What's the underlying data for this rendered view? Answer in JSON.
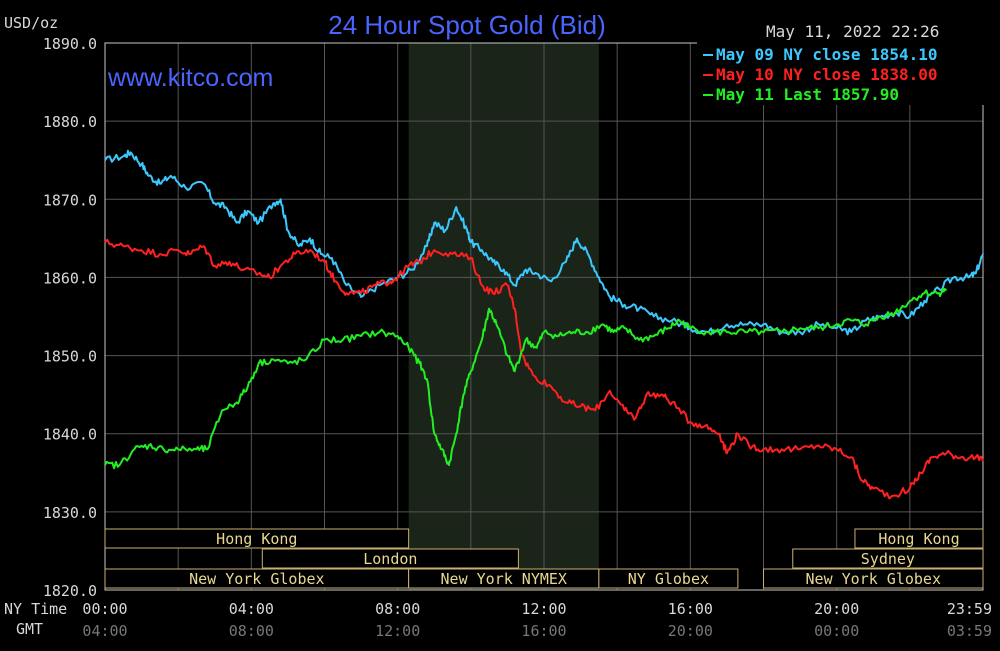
{
  "header": {
    "unit": "USD/oz",
    "title": "24 Hour Spot Gold (Bid)",
    "timestamp": "May 11, 2022 22:26",
    "watermark": "www.kitco.com",
    "title_color": "#4a64ff",
    "text_color": "#d8d8d8"
  },
  "axis_labels": {
    "ny_time": "NY Time",
    "gmt": "GMT"
  },
  "chart_data": {
    "type": "line",
    "title": "24 Hour Spot Gold (Bid)",
    "ylabel": "USD/oz",
    "xlabel": "",
    "ylim": [
      1820,
      1890
    ],
    "xlim": [
      0,
      24
    ],
    "grid": true,
    "legend_position": "top-right",
    "y_ticks": [
      1890,
      1880,
      1870,
      1860,
      1850,
      1840,
      1830,
      1820
    ],
    "y_tick_labels": [
      "1890.0",
      "1880.0",
      "1870.0",
      "1860.0",
      "1850.0",
      "1840.0",
      "1830.0",
      "1820.0"
    ],
    "x_ticks_ny": [
      {
        "hour": 0,
        "label": "00:00"
      },
      {
        "hour": 4,
        "label": "04:00"
      },
      {
        "hour": 8,
        "label": "08:00"
      },
      {
        "hour": 12,
        "label": "12:00"
      },
      {
        "hour": 16,
        "label": "16:00"
      },
      {
        "hour": 20,
        "label": "20:00"
      },
      {
        "hour": 24,
        "label": "23:59"
      }
    ],
    "x_ticks_gmt": [
      "04:00",
      "08:00",
      "12:00",
      "16:00",
      "20:00",
      "00:00",
      "03:59"
    ],
    "shaded_session": {
      "start": 8.3,
      "end": 13.5
    },
    "series": [
      {
        "name": "May 09 NY close 1854.10",
        "color": "#3cc8ff",
        "points": [
          [
            0,
            1875.0
          ],
          [
            0.5,
            1875.5
          ],
          [
            0.7,
            1876.0
          ],
          [
            1.0,
            1874.5
          ],
          [
            1.2,
            1873.0
          ],
          [
            1.5,
            1872.0
          ],
          [
            1.8,
            1873.0
          ],
          [
            2.2,
            1871.5
          ],
          [
            2.7,
            1872.0
          ],
          [
            3.0,
            1869.5
          ],
          [
            3.3,
            1869.0
          ],
          [
            3.6,
            1867.0
          ],
          [
            3.9,
            1868.5
          ],
          [
            4.2,
            1867.0
          ],
          [
            4.6,
            1869.5
          ],
          [
            4.8,
            1870.0
          ],
          [
            5.0,
            1866.0
          ],
          [
            5.3,
            1864.0
          ],
          [
            5.6,
            1865.0
          ],
          [
            5.9,
            1863.0
          ],
          [
            6.2,
            1862.5
          ],
          [
            6.6,
            1859.0
          ],
          [
            7.0,
            1857.5
          ],
          [
            7.5,
            1859.0
          ],
          [
            8.0,
            1860.0
          ],
          [
            8.4,
            1861.0
          ],
          [
            8.8,
            1864.0
          ],
          [
            9.0,
            1867.0
          ],
          [
            9.3,
            1866.0
          ],
          [
            9.6,
            1869.0
          ],
          [
            9.9,
            1866.0
          ],
          [
            10.0,
            1864.5
          ],
          [
            10.3,
            1863.5
          ],
          [
            10.6,
            1862.0
          ],
          [
            10.9,
            1861.0
          ],
          [
            11.2,
            1859.0
          ],
          [
            11.5,
            1861.0
          ],
          [
            11.8,
            1860.5
          ],
          [
            12.2,
            1859.5
          ],
          [
            12.6,
            1862.0
          ],
          [
            12.9,
            1865.0
          ],
          [
            13.2,
            1863.0
          ],
          [
            13.5,
            1860.0
          ],
          [
            13.8,
            1857.5
          ],
          [
            14.2,
            1856.5
          ],
          [
            14.6,
            1856.0
          ],
          [
            15.0,
            1855.0
          ],
          [
            15.5,
            1854.5
          ],
          [
            16.0,
            1853.5
          ],
          [
            16.5,
            1853.0
          ],
          [
            17.0,
            1854.0
          ],
          [
            17.5,
            1854.0
          ],
          [
            18.0,
            1854.0
          ],
          [
            18.5,
            1853.0
          ],
          [
            19.0,
            1853.0
          ],
          [
            19.5,
            1854.0
          ],
          [
            20.0,
            1853.5
          ],
          [
            20.4,
            1853.0
          ],
          [
            20.8,
            1854.5
          ],
          [
            21.2,
            1855.0
          ],
          [
            21.6,
            1855.5
          ],
          [
            22.0,
            1855.0
          ],
          [
            22.4,
            1857.0
          ],
          [
            22.8,
            1858.5
          ],
          [
            23.2,
            1860.0
          ],
          [
            23.6,
            1860.0
          ],
          [
            23.8,
            1860.5
          ],
          [
            24.0,
            1863.0
          ]
        ]
      },
      {
        "name": "May 10 NY close 1838.00",
        "color": "#ff2020",
        "points": [
          [
            0,
            1864.5
          ],
          [
            0.5,
            1864.0
          ],
          [
            1.0,
            1863.5
          ],
          [
            1.5,
            1863.0
          ],
          [
            2.0,
            1863.5
          ],
          [
            2.3,
            1863.0
          ],
          [
            2.7,
            1864.0
          ],
          [
            3.0,
            1861.5
          ],
          [
            3.4,
            1862.0
          ],
          [
            3.8,
            1861.0
          ],
          [
            4.2,
            1860.5
          ],
          [
            4.5,
            1860.0
          ],
          [
            4.8,
            1861.5
          ],
          [
            5.2,
            1863.0
          ],
          [
            5.6,
            1863.5
          ],
          [
            6.0,
            1862.0
          ],
          [
            6.3,
            1859.5
          ],
          [
            6.6,
            1858.0
          ],
          [
            7.0,
            1858.0
          ],
          [
            7.4,
            1859.0
          ],
          [
            7.8,
            1859.5
          ],
          [
            8.0,
            1860.0
          ],
          [
            8.3,
            1861.5
          ],
          [
            8.6,
            1862.0
          ],
          [
            9.0,
            1863.5
          ],
          [
            9.5,
            1863.0
          ],
          [
            10.0,
            1862.5
          ],
          [
            10.3,
            1859.0
          ],
          [
            10.6,
            1858.0
          ],
          [
            11.0,
            1859.0
          ],
          [
            11.2,
            1856.0
          ],
          [
            11.4,
            1850.0
          ],
          [
            11.7,
            1847.5
          ],
          [
            12.2,
            1846.0
          ],
          [
            12.6,
            1844.0
          ],
          [
            13.0,
            1843.5
          ],
          [
            13.4,
            1843.0
          ],
          [
            13.8,
            1845.5
          ],
          [
            14.2,
            1843.0
          ],
          [
            14.5,
            1842.0
          ],
          [
            14.8,
            1845.0
          ],
          [
            15.2,
            1845.0
          ],
          [
            15.5,
            1844.0
          ],
          [
            16.0,
            1841.5
          ],
          [
            16.4,
            1841.0
          ],
          [
            16.8,
            1840.0
          ],
          [
            17.0,
            1837.5
          ],
          [
            17.3,
            1840.0
          ],
          [
            17.6,
            1838.5
          ],
          [
            18.0,
            1838.0
          ],
          [
            18.5,
            1838.0
          ],
          [
            19.0,
            1838.0
          ],
          [
            19.5,
            1838.5
          ],
          [
            20.0,
            1838.0
          ],
          [
            20.4,
            1837.0
          ],
          [
            20.7,
            1834.0
          ],
          [
            21.0,
            1833.0
          ],
          [
            21.5,
            1832.0
          ],
          [
            22.0,
            1833.0
          ],
          [
            22.3,
            1835.0
          ],
          [
            22.6,
            1837.0
          ],
          [
            23.0,
            1837.5
          ],
          [
            23.4,
            1837.0
          ],
          [
            23.8,
            1837.0
          ],
          [
            24.0,
            1836.5
          ]
        ]
      },
      {
        "name": "May 11 Last 1857.90",
        "color": "#22ee22",
        "points": [
          [
            0,
            1836.0
          ],
          [
            0.4,
            1836.0
          ],
          [
            0.8,
            1838.0
          ],
          [
            1.2,
            1838.5
          ],
          [
            1.6,
            1838.0
          ],
          [
            2.0,
            1838.0
          ],
          [
            2.5,
            1838.0
          ],
          [
            2.8,
            1838.0
          ],
          [
            3.2,
            1843.0
          ],
          [
            3.6,
            1844.0
          ],
          [
            3.9,
            1846.0
          ],
          [
            4.2,
            1849.0
          ],
          [
            4.6,
            1849.5
          ],
          [
            5.0,
            1849.0
          ],
          [
            5.5,
            1849.5
          ],
          [
            6.0,
            1852.0
          ],
          [
            6.5,
            1852.0
          ],
          [
            7.0,
            1852.5
          ],
          [
            7.5,
            1853.0
          ],
          [
            8.0,
            1852.5
          ],
          [
            8.3,
            1851.0
          ],
          [
            8.6,
            1849.0
          ],
          [
            8.8,
            1847.0
          ],
          [
            9.0,
            1840.0
          ],
          [
            9.2,
            1838.0
          ],
          [
            9.4,
            1836.0
          ],
          [
            9.6,
            1840.0
          ],
          [
            9.8,
            1845.0
          ],
          [
            10.0,
            1848.0
          ],
          [
            10.3,
            1852.0
          ],
          [
            10.5,
            1856.0
          ],
          [
            10.7,
            1854.0
          ],
          [
            11.0,
            1850.0
          ],
          [
            11.2,
            1848.0
          ],
          [
            11.5,
            1852.0
          ],
          [
            11.8,
            1851.0
          ],
          [
            12.0,
            1853.0
          ],
          [
            12.4,
            1852.5
          ],
          [
            12.8,
            1853.0
          ],
          [
            13.2,
            1853.0
          ],
          [
            13.6,
            1854.0
          ],
          [
            13.9,
            1853.0
          ],
          [
            14.2,
            1853.5
          ],
          [
            14.6,
            1852.0
          ],
          [
            15.0,
            1852.5
          ],
          [
            15.4,
            1853.5
          ],
          [
            15.7,
            1854.5
          ],
          [
            16.0,
            1853.5
          ],
          [
            16.5,
            1853.0
          ],
          [
            17.0,
            1853.0
          ],
          [
            17.5,
            1853.0
          ],
          [
            18.0,
            1853.0
          ],
          [
            18.5,
            1853.0
          ],
          [
            19.0,
            1853.5
          ],
          [
            19.5,
            1853.5
          ],
          [
            20.0,
            1854.0
          ],
          [
            20.4,
            1854.5
          ],
          [
            20.8,
            1854.0
          ],
          [
            21.2,
            1855.0
          ],
          [
            21.6,
            1855.5
          ],
          [
            22.0,
            1857.0
          ],
          [
            22.4,
            1858.0
          ],
          [
            22.8,
            1858.0
          ],
          [
            23.0,
            1858.5
          ]
        ]
      }
    ],
    "sessions": [
      {
        "label": "Hong Kong",
        "start": 0,
        "end": 8.3,
        "row": 0
      },
      {
        "label": "Hong Kong",
        "start": 20.5,
        "end": 24,
        "row": 0
      },
      {
        "label": "London",
        "start": 4.3,
        "end": 11.3,
        "row": 1
      },
      {
        "label": "Sydney",
        "start": 18.8,
        "end": 24,
        "row": 1
      },
      {
        "label": "New York Globex",
        "start": 0,
        "end": 8.3,
        "row": 2
      },
      {
        "label": "New York NYMEX",
        "start": 8.3,
        "end": 13.5,
        "row": 2
      },
      {
        "label": "NY Globex",
        "start": 13.5,
        "end": 17.3,
        "row": 2
      },
      {
        "label": "New York Globex",
        "start": 18.0,
        "end": 24,
        "row": 2
      }
    ]
  }
}
